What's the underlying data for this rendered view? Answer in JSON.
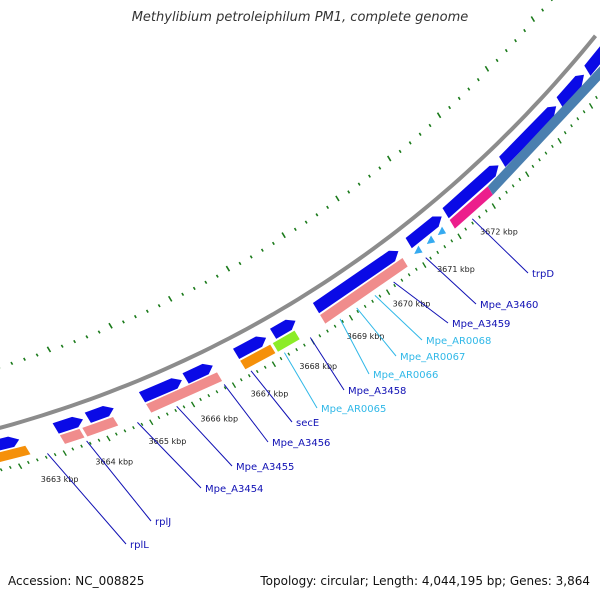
{
  "title": "Methylibium petroleiphilum PM1, complete genome",
  "footer": {
    "accession": "Accession: NC_008825",
    "summary": "Topology: circular; Length: 4,044,195 bp; Genes: 3,864"
  },
  "colors": {
    "cds": "#0a0ae6",
    "rna": "#f08c8c",
    "trna": "#35aaf0",
    "orange": "#f5900a",
    "green": "#8cec28",
    "magenta": "#ec1e8c",
    "steelblue": "#4a7fb0",
    "backbone": "#8c8c8c",
    "ticks": "#1a7a1a",
    "label_dark": "#1010b4",
    "label_light": "#30b8e8"
  },
  "ticks": [
    "3663 kbp",
    "3664 kbp",
    "3665 kbp",
    "3666 kbp",
    "3667 kbp",
    "3668 kbp",
    "3669 kbp",
    "3670 kbp",
    "3671 kbp",
    "3672 kbp"
  ],
  "genes": [
    {
      "name": "rplL",
      "color": "dark"
    },
    {
      "name": "rplJ",
      "color": "dark"
    },
    {
      "name": "Mpe_A3454",
      "color": "dark"
    },
    {
      "name": "Mpe_A3455",
      "color": "dark"
    },
    {
      "name": "Mpe_A3456",
      "color": "dark"
    },
    {
      "name": "secE",
      "color": "dark"
    },
    {
      "name": "Mpe_AR0065",
      "color": "light"
    },
    {
      "name": "Mpe_A3458",
      "color": "dark"
    },
    {
      "name": "Mpe_AR0066",
      "color": "light"
    },
    {
      "name": "Mpe_AR0067",
      "color": "light"
    },
    {
      "name": "Mpe_AR0068",
      "color": "light"
    },
    {
      "name": "Mpe_A3459",
      "color": "dark"
    },
    {
      "name": "Mpe_A3460",
      "color": "dark"
    },
    {
      "name": "trpD",
      "color": "dark"
    }
  ]
}
